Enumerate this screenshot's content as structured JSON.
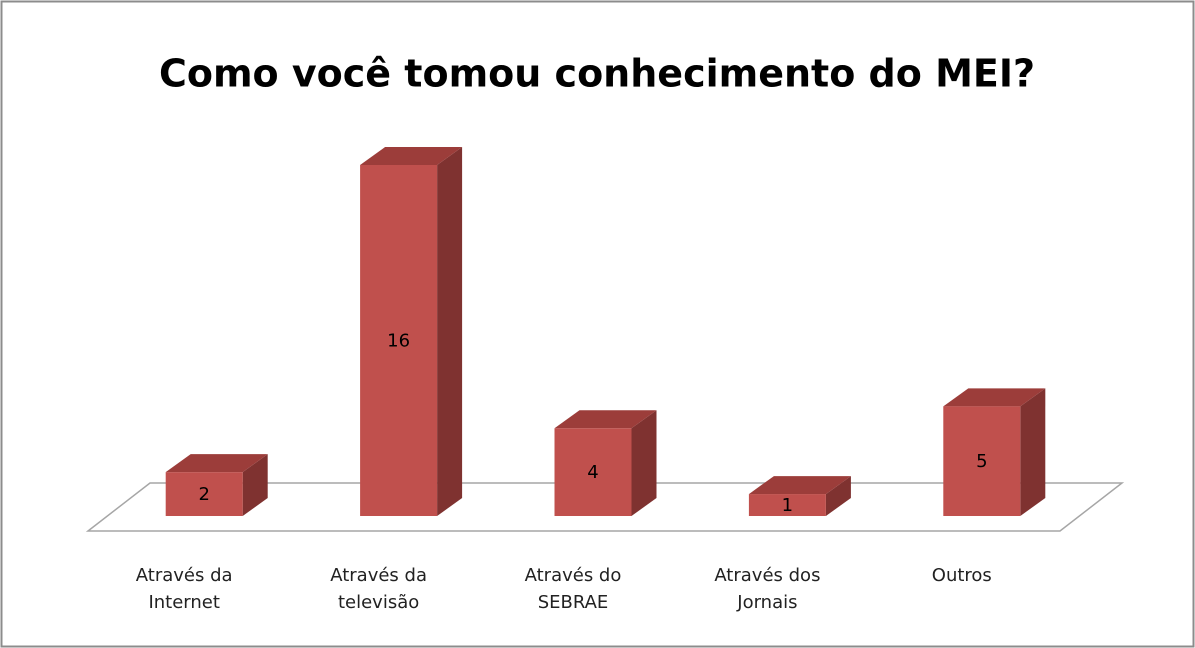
{
  "chart_data": {
    "type": "bar3d",
    "title": "Como você tomou conhecimento do MEI?",
    "categories": [
      "Através da Internet",
      "Através da televisão",
      "Através do SEBRAE",
      "Através dos Jornais",
      "Outros"
    ],
    "values": [
      2,
      16,
      4,
      1,
      5
    ],
    "color": "#c0504d"
  }
}
